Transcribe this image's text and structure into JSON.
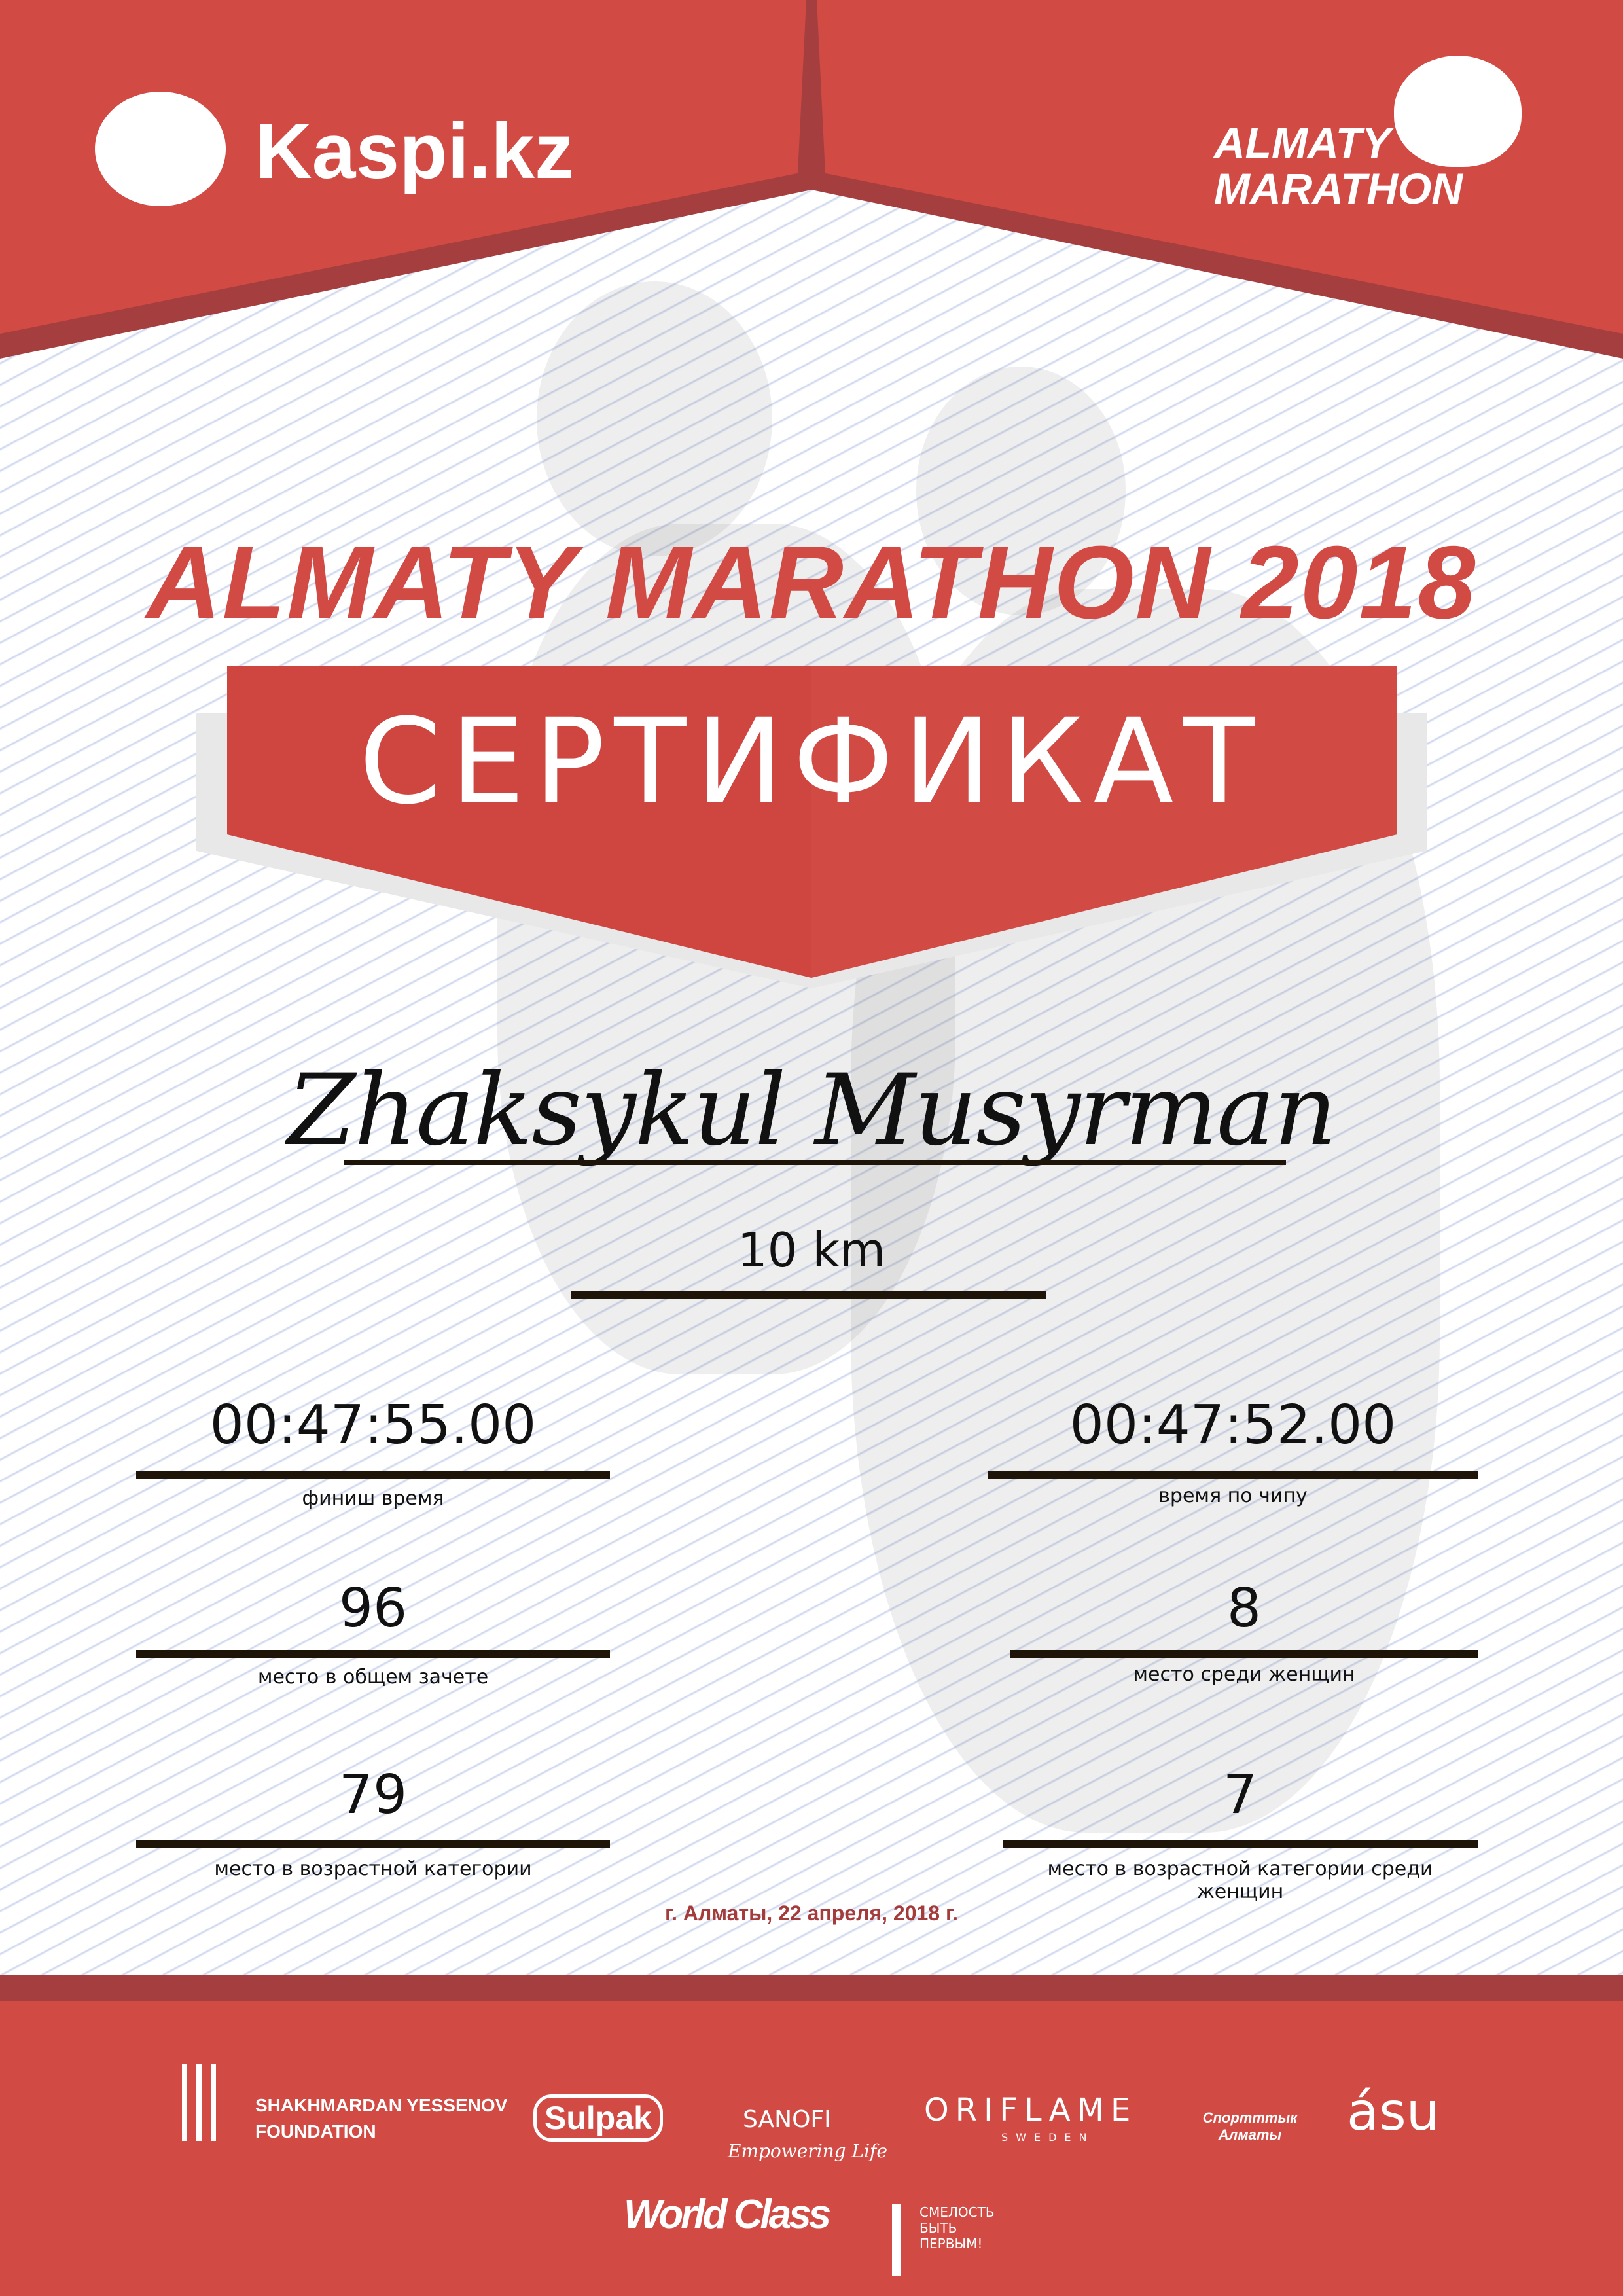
{
  "header": {
    "sponsor_logo": "Kaspi.kz",
    "event_logo_line1": "ALMATY",
    "event_logo_line2": "MARATHON"
  },
  "title": "ALMATY MARATHON 2018",
  "banner": "СЕРТИФИКАТ",
  "participant_name": "Zhaksykul Musyrman",
  "distance": "10 km",
  "results": [
    {
      "value": "00:47:55.00",
      "label": "финиш время"
    },
    {
      "value": "00:47:52.00",
      "label": "время по чипу"
    },
    {
      "value": "96",
      "label": "место в общем зачете"
    },
    {
      "value": "8",
      "label": "место среди женщин"
    },
    {
      "value": "79",
      "label": "место в возрастной категории"
    },
    {
      "value": "7",
      "label": "место в возрастной категории среди женщин"
    }
  ],
  "date_place": "г. Алматы, 22 апреля, 2018 г.",
  "partners": {
    "yessenov_line1": "SHAKHMARDAN YESSENOV",
    "yessenov_line2": "FOUNDATION",
    "sulpak": "Sulpak",
    "sanofi": "SANOFI",
    "sanofi_tagline": "Empowering Life",
    "oriflame": "ORIFLAME",
    "oriflame_sub": "SWEDEN",
    "sport_almaty": "Спортттык Алматы",
    "asu": "ásu",
    "worldclass": "World Class",
    "fund_line1": "СМЕЛОСТЬ",
    "fund_line2": "БЫТЬ",
    "fund_line3": "ПЕРВЫМ!"
  },
  "colors": {
    "brand_red": "#d24a44",
    "dark_red": "#a53e3f",
    "stripe": "#c9d3ec"
  }
}
